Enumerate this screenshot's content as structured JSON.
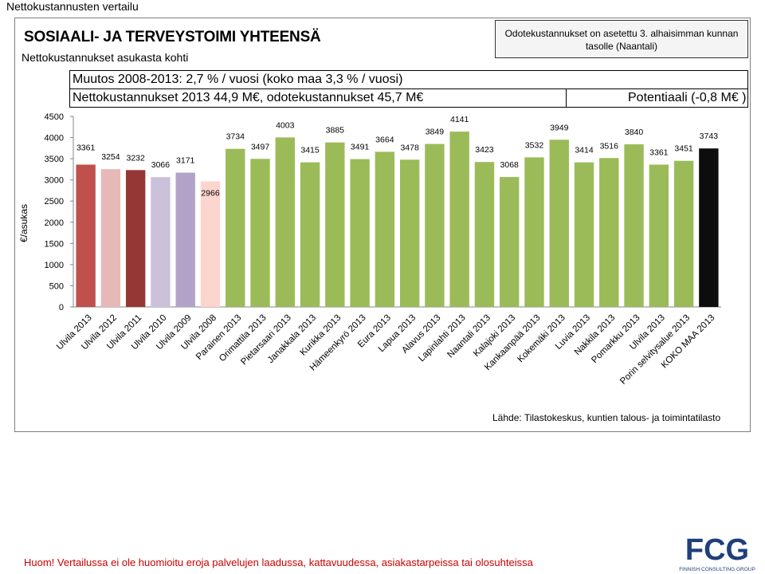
{
  "slide_title": "Nettokustannusten vertailu",
  "heading": "SOSIAALI- JA TERVEYSTOIMI YHTEENSÄ",
  "subheading": "Nettokustannukset asukasta kohti",
  "reference_note": "Odotekustannukset on asetettu 3. alhaisimman kunnan tasolle (Naantali)",
  "change_line1": "Muutos 2008-2013: 2,7 % / vuosi (koko maa 3,3 % / vuosi)",
  "change_line2": "Nettokustannukset 2013 44,9 M€, odotekustannukset 45,7 M€",
  "potential": "Potentiaali  (-0,8 M€ )",
  "source": "Lähde: Tilastokeskus, kuntien talous- ja toimintatilasto",
  "warning": "Huom! Vertailussa ei ole huomioitu eroja palvelujen laadussa, kattavuudessa, asiakastarpeissa tai olosuhteissa",
  "logo": {
    "text": "FCG",
    "tagline": "FINNISH CONSULTING GROUP",
    "color": "#1f3f7a"
  },
  "colors": {
    "green": "#9bbb59",
    "black": "#0d0d0d"
  },
  "chart_data": {
    "type": "bar",
    "ylabel": "€/asukas",
    "ylim": [
      0,
      4500
    ],
    "yticks": [
      0,
      500,
      1000,
      1500,
      2000,
      2500,
      3000,
      3500,
      4000,
      4500
    ],
    "categories": [
      "Ulvila 2013",
      "Ulvila 2012",
      "Ulvila 2011",
      "Ulvila 2010",
      "Ulvila 2009",
      "Ulvila 2008",
      "Parainen 2013",
      "Orimattila 2013",
      "Pietarsaari 2013",
      "Janakkala 2013",
      "Kurikka 2013",
      "Hämeenkyrö 2013",
      "Eura 2013",
      "Lapua 2013",
      "Alavus 2013",
      "Lapinlahti 2013",
      "Naantali 2013",
      "Kalajoki 2013",
      "Kankaanpää 2013",
      "Kokemäki 2013",
      "Luvia 2013",
      "Nakkila 2013",
      "Pomarkku 2013",
      "Ulvila 2013",
      "Porin selvitysalue 2013",
      "KOKO MAA 2013"
    ],
    "values": [
      3361,
      3254,
      3232,
      3066,
      3171,
      2966,
      3734,
      3497,
      4003,
      3415,
      3885,
      3491,
      3664,
      3478,
      3849,
      4141,
      3423,
      3068,
      3532,
      3949,
      3414,
      3516,
      3840,
      3361,
      3451,
      3743
    ],
    "bar_colors": [
      "#c0504d",
      "#e6b9b8",
      "#953735",
      "#ccc1da",
      "#b3a2c7",
      "#fcd5cf",
      "#9bbb59",
      "#9bbb59",
      "#9bbb59",
      "#9bbb59",
      "#9bbb59",
      "#9bbb59",
      "#9bbb59",
      "#9bbb59",
      "#9bbb59",
      "#9bbb59",
      "#9bbb59",
      "#9bbb59",
      "#9bbb59",
      "#9bbb59",
      "#9bbb59",
      "#9bbb59",
      "#9bbb59",
      "#9bbb59",
      "#9bbb59",
      "#0d0d0d"
    ],
    "grid": false,
    "legend": "none"
  }
}
